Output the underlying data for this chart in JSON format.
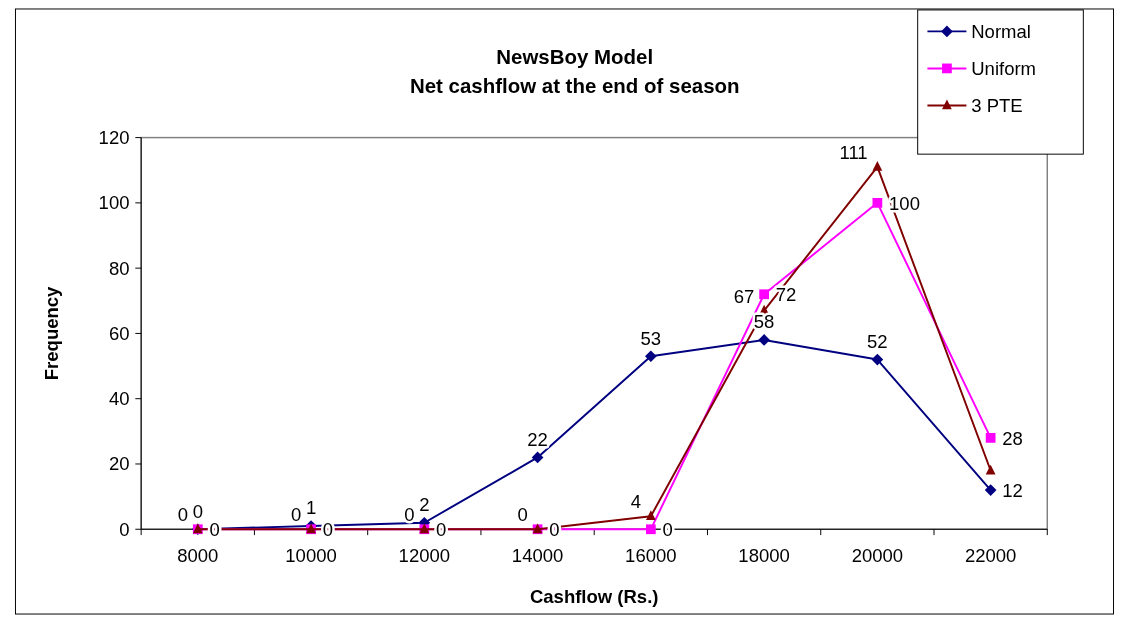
{
  "chart_data": {
    "type": "line",
    "title": "NewsBoy Model",
    "subtitle": "Net cashflow at the end of season",
    "xlabel": "Cashflow (Rs.)",
    "ylabel": "Frequency",
    "categories": [
      "8000",
      "10000",
      "12000",
      "14000",
      "16000",
      "18000",
      "20000",
      "22000"
    ],
    "ylim": [
      0,
      120
    ],
    "yticks": [
      0,
      20,
      40,
      60,
      80,
      100,
      120
    ],
    "grid": false,
    "legend": "top right",
    "series": [
      {
        "name": "Normal",
        "color": "#000080",
        "marker": "diamond",
        "values": [
          0,
          1,
          2,
          22,
          53,
          58,
          52,
          12
        ],
        "value_labels": [
          "0",
          "1",
          "2",
          "22",
          "53",
          "58",
          "52",
          "12"
        ]
      },
      {
        "name": "Uniform",
        "color": "#ff00ff",
        "marker": "square",
        "values": [
          0,
          0,
          0,
          0,
          0,
          72,
          100,
          28
        ],
        "value_labels": [
          "0",
          "0",
          "0",
          "0",
          "0",
          "72",
          "100",
          "28"
        ]
      },
      {
        "name": "3 PTE",
        "color": "#800000",
        "marker": "triangle",
        "values": [
          0,
          0,
          0,
          0,
          4,
          67,
          111,
          18
        ],
        "value_labels": [
          "0",
          "0",
          "0",
          "0",
          "4",
          "67",
          "111",
          null
        ]
      }
    ]
  }
}
